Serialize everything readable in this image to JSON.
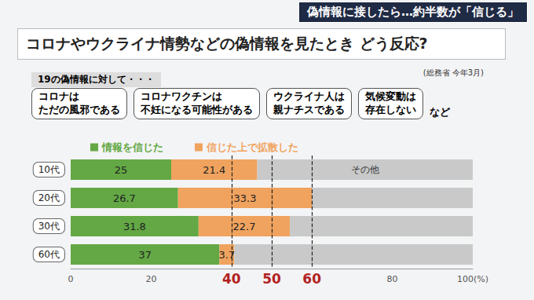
{
  "header": {
    "banner": "偽情報に接したら…約半数が「信じる」",
    "title": "コロナやウクライナ情勢などの偽情報を見たとき どう反応?",
    "source": "(総務省 今年3月)",
    "subtitle": "19の偽情報に対して・・・",
    "examples": [
      "コロナは\nただの風邪である",
      "コロナワクチンは\n不妊になる可能性がある",
      "ウクライナ人は\n親ナチスである",
      "気候変動は\n存在しない"
    ],
    "examples_suffix": "など"
  },
  "chart_data": {
    "type": "bar",
    "orientation": "horizontal",
    "stacked": true,
    "categories": [
      "10代",
      "20代",
      "30代",
      "60代"
    ],
    "series": [
      {
        "name": "情報を信じた",
        "color": "#63a844",
        "values": [
          25,
          26.7,
          31.8,
          37
        ],
        "data_labels": true
      },
      {
        "name": "信じた上で拡散した",
        "color": "#f0a35e",
        "values": [
          21.4,
          33.3,
          22.7,
          3.7
        ],
        "data_labels": true
      },
      {
        "name": "その他",
        "color": "#c9c9c9",
        "values": [
          53.6,
          40,
          45.5,
          59.3
        ],
        "data_labels": false
      }
    ],
    "xlim": [
      0,
      100
    ],
    "xticks": [
      0,
      20,
      40,
      60,
      80,
      {
        "value": 100,
        "label": "100(%)"
      }
    ],
    "grid": false,
    "legend": "top-left",
    "annotations": [
      {
        "type": "vline",
        "x": 40
      },
      {
        "type": "vline",
        "x": 50
      },
      {
        "type": "vline",
        "x": 60
      },
      {
        "type": "text",
        "text": "その他",
        "series": "その他",
        "category": "10代"
      }
    ]
  }
}
